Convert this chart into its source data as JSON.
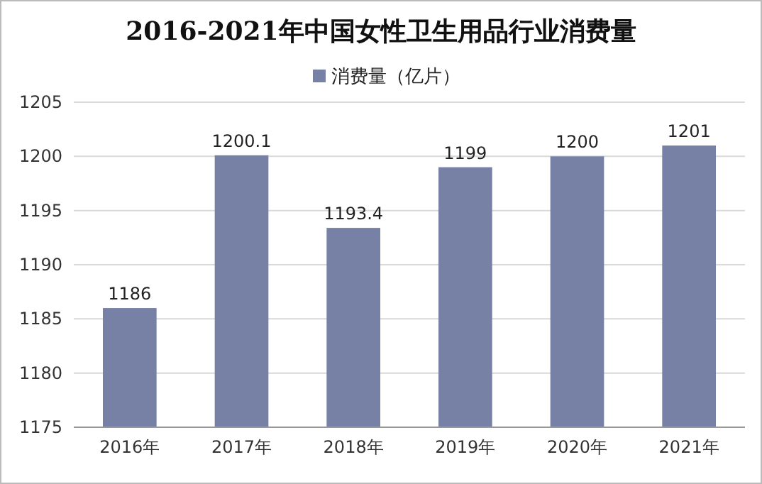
{
  "chart_data": {
    "type": "bar",
    "title": "2016-2021年中国女性卫生用品行业消费量",
    "categories": [
      "2016年",
      "2017年",
      "2018年",
      "2019年",
      "2020年",
      "2021年"
    ],
    "series": [
      {
        "name": "消费量（亿片）",
        "color": "#7781a6",
        "values": [
          1186,
          1200.1,
          1193.4,
          1199,
          1200,
          1201
        ]
      }
    ],
    "ylim": [
      1175,
      1205
    ],
    "yticks": [
      1175,
      1180,
      1185,
      1190,
      1195,
      1200,
      1205
    ],
    "grid": "y",
    "legend": "top",
    "data_labels": true
  }
}
